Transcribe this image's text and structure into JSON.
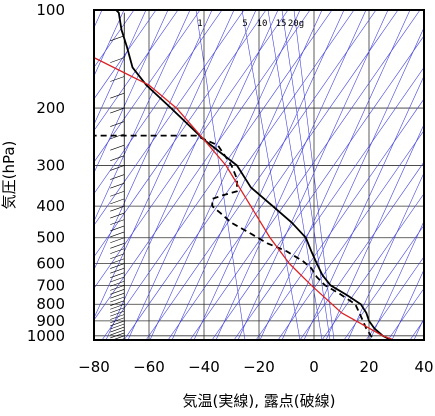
{
  "chart_data": {
    "type": "line",
    "title": "",
    "xlabel": "気温(実線), 露点(破線)",
    "ylabel": "気圧(hPa)",
    "xlim": [
      -80,
      40
    ],
    "ylim": [
      1030,
      100
    ],
    "y_scale": "log",
    "grid": true,
    "x_ticks": [
      -80,
      -60,
      -40,
      -20,
      0,
      20,
      40
    ],
    "x_tick_labels": [
      "−80",
      "−60",
      "−40",
      "−20",
      "0",
      "20",
      "40"
    ],
    "y_ticks": [
      100,
      200,
      300,
      400,
      500,
      600,
      700,
      800,
      900,
      1000
    ],
    "y_tick_labels": [
      "100",
      "200",
      "300",
      "400",
      "500",
      "600",
      "700",
      "800",
      "900",
      "1000"
    ],
    "mixing_ratio_labels": [
      "1",
      "5",
      "10",
      "15",
      "20g"
    ],
    "series": [
      {
        "style": "solid",
        "color": "#000000",
        "points": [
          [
            28,
            1030
          ],
          [
            25,
            1000
          ],
          [
            22,
            950
          ],
          [
            20,
            900
          ],
          [
            19,
            850
          ],
          [
            17,
            800
          ],
          [
            12,
            750
          ],
          [
            6,
            700
          ],
          [
            3,
            650
          ],
          [
            1,
            600
          ],
          [
            -1,
            550
          ],
          [
            -3,
            500
          ],
          [
            -8,
            450
          ],
          [
            -15,
            400
          ],
          [
            -23,
            350
          ],
          [
            -28,
            300
          ],
          [
            -40,
            250
          ],
          [
            -52,
            200
          ],
          [
            -61,
            170
          ],
          [
            -66,
            150
          ],
          [
            -68,
            130
          ],
          [
            -70,
            115
          ],
          [
            -71,
            102
          ],
          [
            -72,
            100
          ]
        ]
      },
      {
        "style": "dashed",
        "color": "#000000",
        "points": [
          [
            21,
            1010
          ],
          [
            19,
            950
          ],
          [
            17,
            870
          ],
          [
            15,
            800
          ],
          [
            9,
            740
          ],
          [
            4,
            700
          ],
          [
            1,
            660
          ],
          [
            -1,
            620
          ],
          [
            -4,
            590
          ],
          [
            -10,
            550
          ],
          [
            -17,
            520
          ],
          [
            -24,
            480
          ],
          [
            -30,
            450
          ],
          [
            -34,
            420
          ],
          [
            -37,
            400
          ],
          [
            -37,
            380
          ],
          [
            -33,
            370
          ],
          [
            -28,
            360
          ],
          [
            -28,
            330
          ],
          [
            -30,
            300
          ],
          [
            -35,
            260
          ],
          [
            -43,
            243
          ],
          [
            -81,
            243
          ]
        ]
      },
      {
        "style": "solid",
        "color": "#dd2222",
        "points": [
          [
            29,
            1030
          ],
          [
            25,
            1000
          ],
          [
            10,
            850
          ],
          [
            -1,
            700
          ],
          [
            -9,
            600
          ],
          [
            -16,
            500
          ],
          [
            -23,
            400
          ],
          [
            -32,
            300
          ],
          [
            -40,
            250
          ],
          [
            -50,
            200
          ],
          [
            -60,
            170
          ],
          [
            -80,
            140
          ]
        ]
      }
    ]
  }
}
